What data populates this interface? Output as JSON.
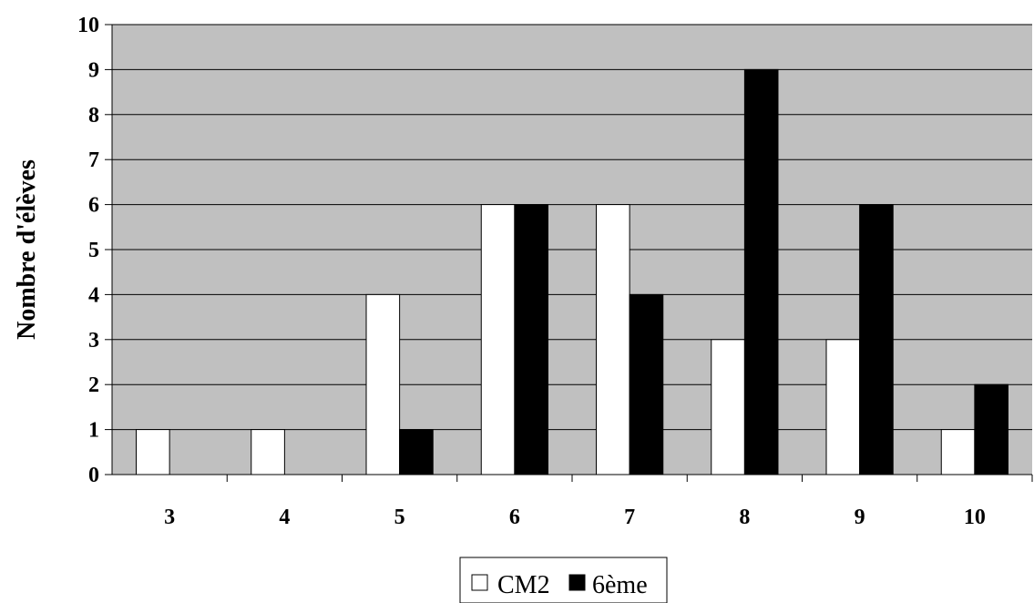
{
  "chart_data": {
    "type": "bar",
    "title": "",
    "xlabel": "",
    "ylabel": "Nombre d'élèves",
    "categories": [
      "3",
      "4",
      "5",
      "6",
      "7",
      "8",
      "9",
      "10"
    ],
    "series": [
      {
        "name": "CM2",
        "values": [
          1,
          1,
          4,
          6,
          6,
          3,
          3,
          1
        ],
        "color": "#ffffff"
      },
      {
        "name": "6ème",
        "values": [
          0,
          0,
          1,
          6,
          4,
          9,
          6,
          2
        ],
        "color": "#000000"
      }
    ],
    "ylim": [
      0,
      10
    ],
    "yticks": [
      "0",
      "1",
      "2",
      "3",
      "4",
      "5",
      "6",
      "7",
      "8",
      "9",
      "10"
    ],
    "grid": true,
    "plot_background": "#c0c0c0",
    "legend_position": "bottom-center"
  }
}
